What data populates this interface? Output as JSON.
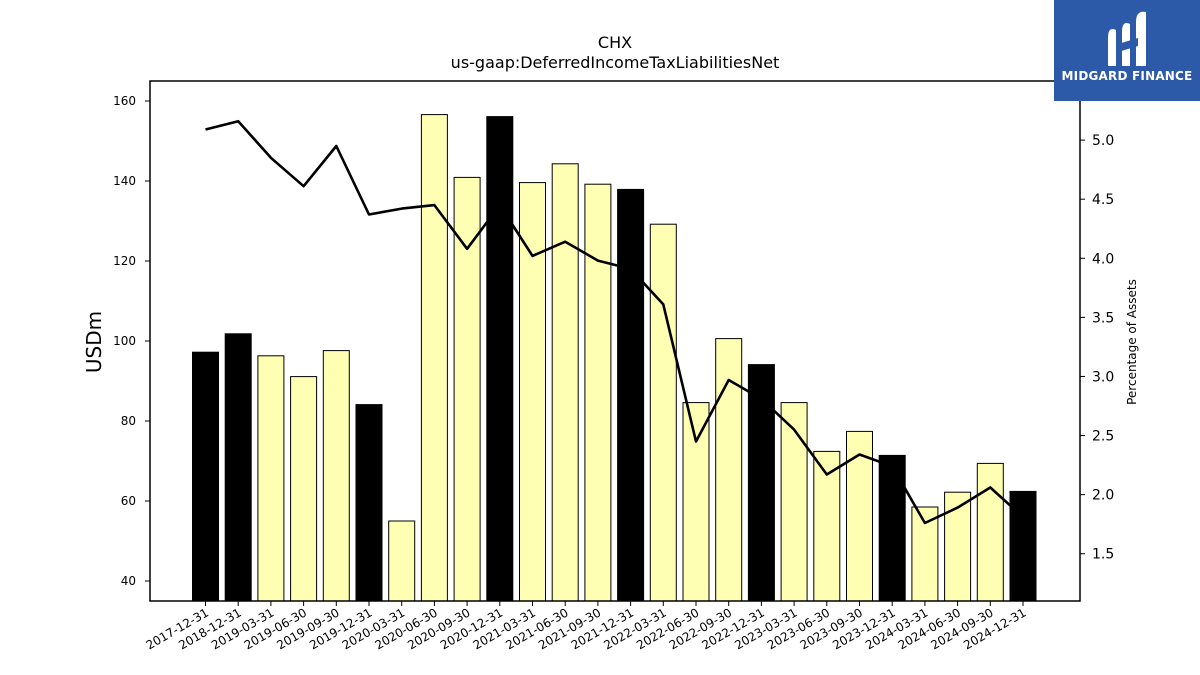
{
  "logo": {
    "text": "MIDGARD FINANCE"
  },
  "chart_data": {
    "type": "bar",
    "title": "CHX",
    "subtitle": "us-gaap:DeferredIncomeTaxLiabilitiesNet",
    "ylabel": "USDm",
    "y2label": "Percentage of Assets",
    "ylim": [
      35,
      165
    ],
    "y2lim": [
      1.1,
      5.5
    ],
    "yticks": [
      40,
      60,
      80,
      100,
      120,
      140,
      160
    ],
    "y2ticks": [
      1.5,
      2.0,
      2.5,
      3.0,
      3.5,
      4.0,
      4.5,
      5.0
    ],
    "categories": [
      "2017-12-31",
      "2018-12-31",
      "2019-03-31",
      "2019-06-30",
      "2019-09-30",
      "2019-12-31",
      "2020-03-31",
      "2020-06-30",
      "2020-09-30",
      "2020-12-31",
      "2021-03-31",
      "2021-06-30",
      "2021-09-30",
      "2021-12-31",
      "2022-03-31",
      "2022-06-30",
      "2022-09-30",
      "2022-12-31",
      "2023-03-31",
      "2023-06-30",
      "2023-09-30",
      "2023-12-31",
      "2024-03-31",
      "2024-06-30",
      "2024-09-30",
      "2024-12-31"
    ],
    "series": [
      {
        "values": [
          97.2,
          101.8,
          96.3,
          91.1,
          97.6,
          84.1,
          55.0,
          156.6,
          140.9,
          156.1,
          139.6,
          144.3,
          139.2,
          137.9,
          129.2,
          84.6,
          100.6,
          94.1,
          84.6,
          72.4,
          77.4,
          71.4,
          58.5,
          62.2,
          69.4,
          62.4
        ]
      },
      {
        "values": [
          5.09,
          5.16,
          4.85,
          4.61,
          4.95,
          4.37,
          4.42,
          4.45,
          4.08,
          4.45,
          4.02,
          4.14,
          3.98,
          3.91,
          3.61,
          2.45,
          2.97,
          2.81,
          2.55,
          2.17,
          2.34,
          2.24,
          1.76,
          1.89,
          2.06,
          1.81
        ]
      }
    ],
    "colors": {
      "annual_bar": "#000000",
      "quarter_bar": "#ffffb3",
      "line": "#000000"
    },
    "grid": false
  }
}
